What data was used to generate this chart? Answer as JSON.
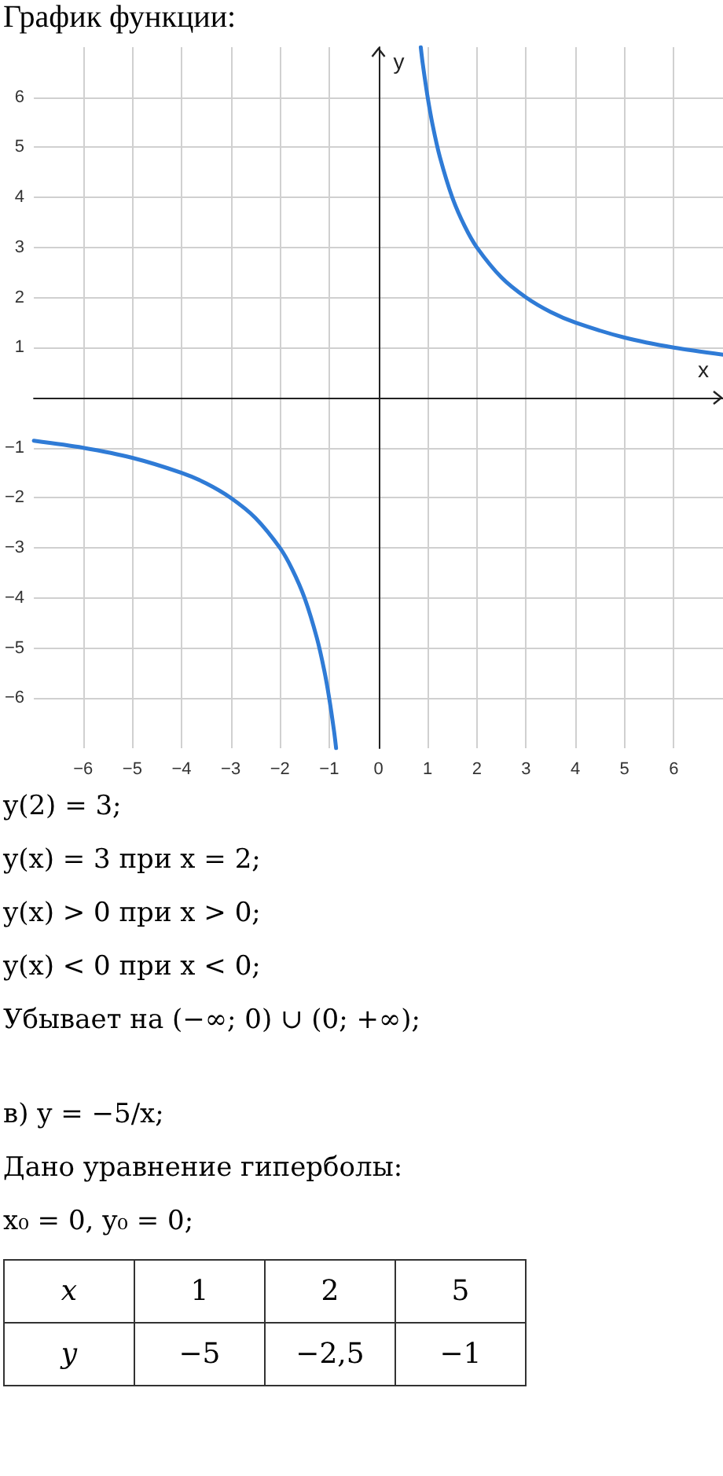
{
  "chart_data": [
    {
      "type": "line",
      "title": "График функции:",
      "xlabel": "x",
      "ylabel": "y",
      "grid": true,
      "marker": "none",
      "line_style": "solid",
      "xlim": [
        -7,
        7
      ],
      "ylim": [
        -7,
        7
      ],
      "xticks": [
        {
          "value": -6,
          "label": "−6"
        },
        {
          "value": -5,
          "label": "−5"
        },
        {
          "value": -4,
          "label": "−4"
        },
        {
          "value": -3,
          "label": "−3"
        },
        {
          "value": -2,
          "label": "−2"
        },
        {
          "value": -1,
          "label": "−1"
        },
        0,
        1,
        2,
        3,
        4,
        5,
        6
      ],
      "yticks": [
        {
          "value": -6,
          "label": "−6"
        },
        {
          "value": -5,
          "label": "−5"
        },
        {
          "value": -4,
          "label": "−4"
        },
        {
          "value": -3,
          "label": "−3"
        },
        {
          "value": -2,
          "label": "−2"
        },
        {
          "value": -1,
          "label": "−1"
        },
        1,
        2,
        3,
        4,
        5,
        6
      ],
      "series": [
        {
          "color": "#2f7bd6",
          "x": [
            0.86,
            0.9,
            1,
            1.1,
            1.25,
            1.5,
            1.75,
            2,
            2.5,
            3,
            3.5,
            4,
            5,
            6,
            7
          ],
          "values": [
            7,
            6.67,
            6,
            5.45,
            4.8,
            4,
            3.43,
            3,
            2.4,
            2,
            1.71,
            1.5,
            1.2,
            1,
            0.86
          ]
        },
        {
          "color": "#2f7bd6",
          "x": [
            -7,
            -6,
            -5,
            -4,
            -3.5,
            -3,
            -2.5,
            -2,
            -1.75,
            -1.5,
            -1.25,
            -1.1,
            -1,
            -0.9,
            -0.86
          ],
          "values": [
            -0.86,
            -1,
            -1.2,
            -1.5,
            -1.71,
            -2,
            -2.4,
            -3,
            -3.43,
            -4,
            -4.8,
            -5.45,
            -6,
            -6.67,
            -7
          ]
        }
      ]
    },
    {
      "type": "other",
      "annotations": [
        "y(2) = 3;",
        "y(x) = 3 при x = 2;",
        "y(x) > 0 при x > 0;",
        "y(x) < 0 при x < 0;",
        "Убывает на (−∞; 0) ∪ (0; +∞);",
        "в) y = −5/x;",
        "Дано уравнение гиперболы:",
        "x₀ = 0, y₀ = 0;",
        "x",
        "1",
        "2",
        "5",
        "y",
        "−5",
        "−2,5",
        "−1"
      ]
    }
  ]
}
